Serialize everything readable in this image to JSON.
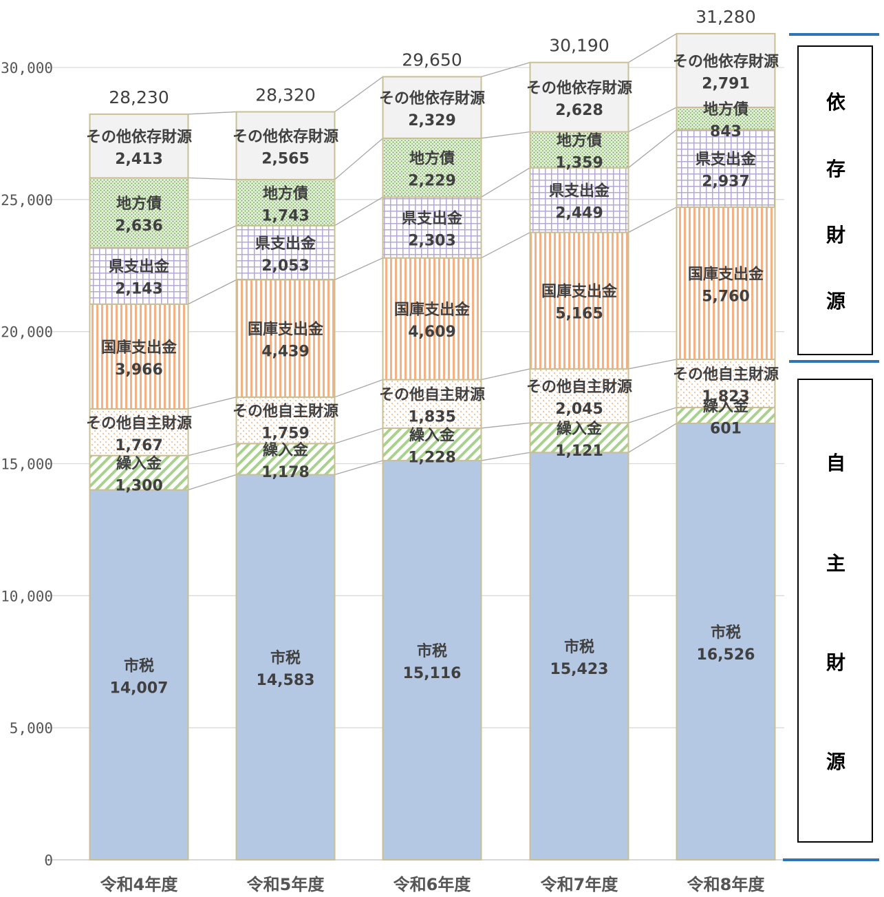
{
  "chart_data": {
    "type": "bar",
    "stacked": true,
    "categories": [
      "令和4年度",
      "令和5年度",
      "令和6年度",
      "令和7年度",
      "令和8年度"
    ],
    "series": [
      {
        "name": "市税",
        "values": [
          14007,
          14583,
          15116,
          15423,
          16526
        ],
        "labels": [
          "14,007",
          "14,583",
          "15,116",
          "15,423",
          "16,526"
        ],
        "color": "#b4c7e3",
        "pattern": "solid"
      },
      {
        "name": "繰入金",
        "values": [
          1300,
          1178,
          1228,
          1121,
          601
        ],
        "labels": [
          "1,300",
          "1,178",
          "1,228",
          "1,121",
          "601"
        ],
        "color": "#a9d18e",
        "pattern": "diagonal"
      },
      {
        "name": "その他自主財源",
        "values": [
          1767,
          1759,
          1835,
          2045,
          1823
        ],
        "labels": [
          "1,767",
          "1,759",
          "1,835",
          "2,045",
          "1,823"
        ],
        "color": "#f4b183",
        "pattern": "dots"
      },
      {
        "name": "国庫支出金",
        "values": [
          3966,
          4439,
          4609,
          5165,
          5760
        ],
        "labels": [
          "3,966",
          "4,439",
          "4,609",
          "5,165",
          "5,760"
        ],
        "color": "#f4a46e",
        "pattern": "vertical"
      },
      {
        "name": "県支出金",
        "values": [
          2143,
          2053,
          2303,
          2449,
          2937
        ],
        "labels": [
          "2,143",
          "2,053",
          "2,303",
          "2,449",
          "2,937"
        ],
        "color": "#b4a7d6",
        "pattern": "grid"
      },
      {
        "name": "地方債",
        "values": [
          2636,
          1743,
          2229,
          1359,
          843
        ],
        "labels": [
          "2,636",
          "1,743",
          "2,229",
          "1,359",
          "843"
        ],
        "color": "#70ad47",
        "pattern": "dense-dots"
      },
      {
        "name": "その他依存財源",
        "values": [
          2413,
          2565,
          2329,
          2628,
          2791
        ],
        "labels": [
          "2,413",
          "2,565",
          "2,329",
          "2,628",
          "2,791"
        ],
        "color": "#f2f2f2",
        "pattern": "solid"
      }
    ],
    "totals": [
      "28,230",
      "28,320",
      "29,650",
      "30,190",
      "31,280"
    ],
    "ylim": [
      0,
      30000
    ],
    "yticks": [
      0,
      5000,
      10000,
      15000,
      20000,
      25000,
      30000
    ],
    "ytick_labels": [
      "0",
      "5,000",
      "10,000",
      "15,000",
      "20,000",
      "25,000",
      "30,000"
    ],
    "grid": true,
    "title": "",
    "xlabel": "",
    "ylabel": "",
    "groups": [
      {
        "label": "依存財源",
        "chars": [
          "依",
          "存",
          "財",
          "源"
        ]
      },
      {
        "label": "自主財源",
        "chars": [
          "自",
          "主",
          "財",
          "源"
        ]
      }
    ]
  }
}
